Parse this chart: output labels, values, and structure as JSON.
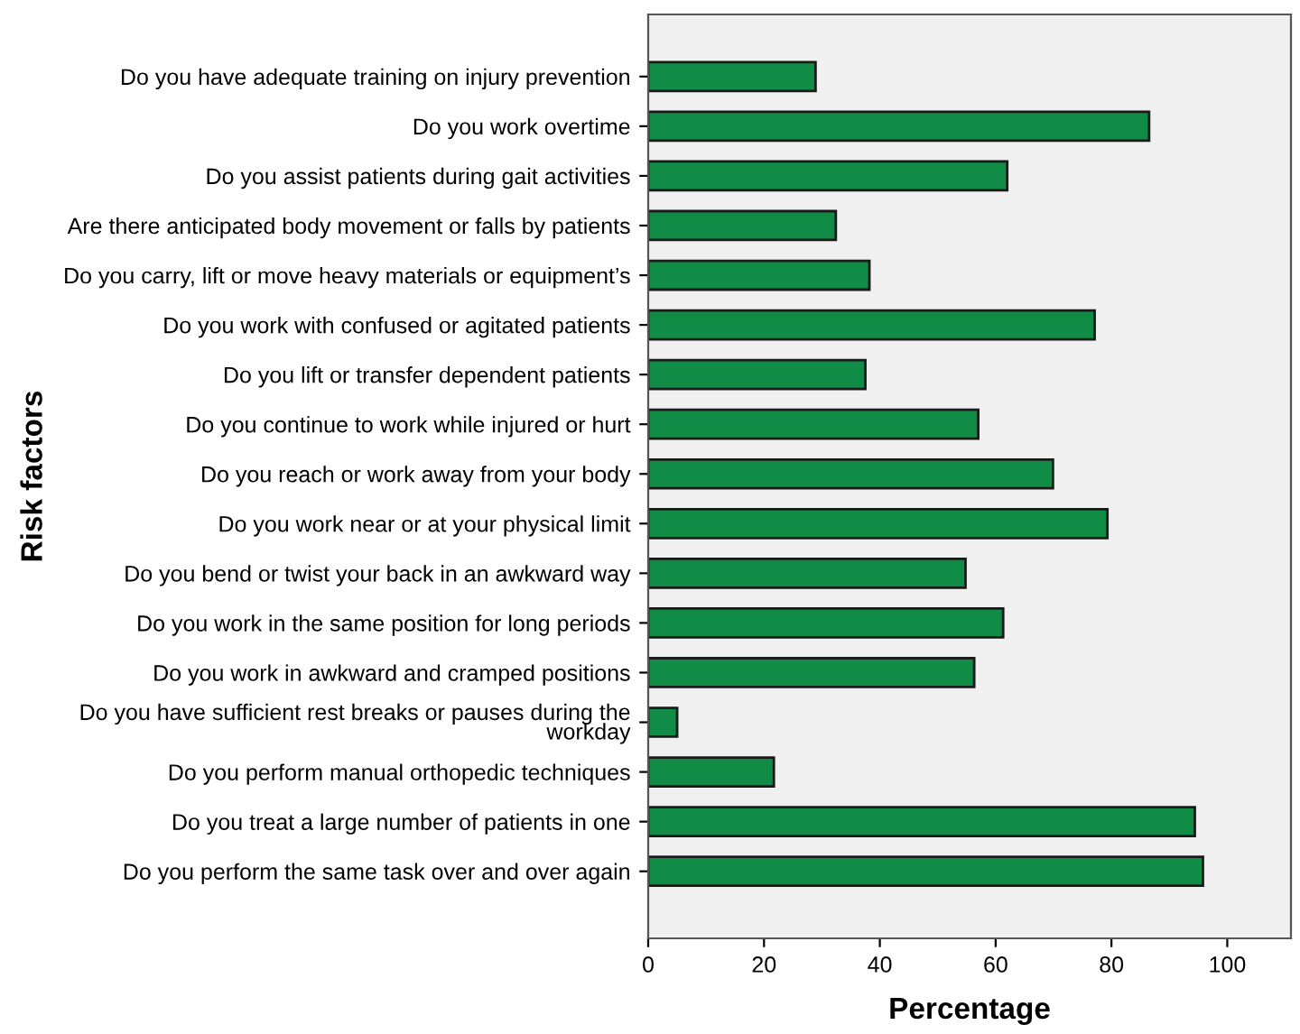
{
  "chart_data": {
    "type": "bar",
    "orientation": "horizontal",
    "xlabel": "Percentage",
    "ylabel": "Risk factors",
    "categories": [
      "Do you have adequate training on injury prevention",
      "Do you work overtime",
      "Do you assist patients during gait activities",
      "Are there anticipated body movement or falls by patients",
      "Do you carry, lift or move heavy materials or equipment’s",
      "Do you work with confused or agitated patients",
      "Do you lift or transfer dependent patients",
      "Do you continue to work while injured or hurt",
      "Do you reach or work away from your body",
      "Do you work near or at your physical limit",
      "Do you bend or twist your back in an awkward way",
      "Do you work in the same position for long periods",
      "Do you work in awkward and cramped positions",
      "Do you have sufficient rest breaks or pauses during the\nworkday",
      "Do you perform manual orthopedic techniques",
      "Do you treat a large number of patients in one",
      "Do you perform the same task over and over again"
    ],
    "values": [
      28.9,
      86.5,
      62.0,
      32.4,
      38.2,
      77.1,
      37.5,
      57.0,
      69.9,
      79.3,
      54.8,
      61.3,
      56.3,
      5.0,
      21.7,
      94.4,
      95.8
    ],
    "color": "#118c46",
    "xlim": [
      0,
      111
    ],
    "xticks": [
      0,
      20,
      40,
      60,
      80,
      100
    ],
    "grid": false
  }
}
